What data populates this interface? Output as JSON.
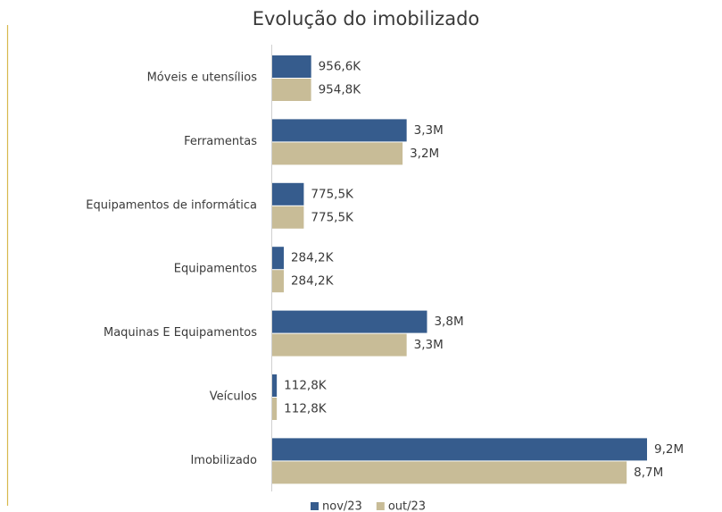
{
  "chart_data": {
    "type": "bar",
    "orientation": "horizontal",
    "title": "Evolução do imobilizado",
    "categories": [
      "Móveis e utensílios",
      "Ferramentas",
      "Equipamentos de informática",
      "Equipamentos",
      "Maquinas E Equipamentos",
      "Veículos",
      "Imobilizado"
    ],
    "series": [
      {
        "name": "nov/23",
        "color": "#365c8d",
        "values": [
          956600,
          3300000,
          775500,
          284200,
          3800000,
          112800,
          9200000
        ],
        "value_labels": [
          "956,6K",
          "3,3M",
          "775,5K",
          "284,2K",
          "3,8M",
          "112,8K",
          "9,2M"
        ]
      },
      {
        "name": "out/23",
        "color": "#c8bc97",
        "values": [
          954800,
          3200000,
          775500,
          284200,
          3300000,
          112800,
          8700000
        ],
        "value_labels": [
          "954,8K",
          "3,2M",
          "775,5K",
          "284,2K",
          "3,3M",
          "112,8K",
          "8,7M"
        ]
      }
    ],
    "legend": "bottom"
  }
}
